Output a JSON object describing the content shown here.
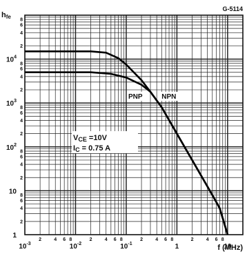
{
  "figure_code": "G-5114",
  "chart_data": {
    "type": "line",
    "title": "",
    "ylabel_main": "h",
    "ylabel_sub": "fe",
    "xlabel": "f (MHz)",
    "xscale": "log",
    "yscale": "log",
    "xlim": [
      0.001,
      20
    ],
    "ylim": [
      1,
      100000
    ],
    "grid": true,
    "x_ticks": [
      {
        "value": 0.001,
        "base": "10",
        "exp": "-3"
      },
      {
        "value": 0.01,
        "base": "10",
        "exp": "-2"
      },
      {
        "value": 0.1,
        "base": "10",
        "exp": "-1"
      },
      {
        "value": 1,
        "label": "1"
      },
      {
        "value": 10,
        "label": "10"
      }
    ],
    "x_minor_labels": [
      {
        "value": 0.002,
        "label": "2"
      },
      {
        "value": 0.004,
        "label": "4"
      },
      {
        "value": 0.006,
        "label": "6"
      },
      {
        "value": 0.008,
        "label": "8"
      },
      {
        "value": 0.02,
        "label": "2"
      },
      {
        "value": 0.04,
        "label": "4"
      },
      {
        "value": 0.06,
        "label": "6"
      },
      {
        "value": 0.08,
        "label": "8"
      },
      {
        "value": 0.2,
        "label": "2"
      },
      {
        "value": 0.4,
        "label": "4"
      },
      {
        "value": 0.6,
        "label": "6"
      },
      {
        "value": 0.8,
        "label": "8"
      },
      {
        "value": 2,
        "label": "2"
      },
      {
        "value": 4,
        "label": "4"
      },
      {
        "value": 6,
        "label": "6"
      },
      {
        "value": 8,
        "label": "8"
      }
    ],
    "y_ticks": [
      {
        "value": 10000,
        "base": "10",
        "exp": "4"
      },
      {
        "value": 1000,
        "base": "10",
        "exp": "3"
      },
      {
        "value": 100,
        "base": "10",
        "exp": "2"
      },
      {
        "value": 10,
        "label": "10"
      },
      {
        "value": 1,
        "label": "1"
      }
    ],
    "y_minor_labels": [
      {
        "value": 80000,
        "label": "8"
      },
      {
        "value": 60000,
        "label": "6"
      },
      {
        "value": 40000,
        "label": "4"
      },
      {
        "value": 20000,
        "label": "2"
      },
      {
        "value": 8000,
        "label": "8"
      },
      {
        "value": 6000,
        "label": "6"
      },
      {
        "value": 4000,
        "label": "4"
      },
      {
        "value": 2000,
        "label": "2"
      },
      {
        "value": 800,
        "label": "8"
      },
      {
        "value": 600,
        "label": "6"
      },
      {
        "value": 400,
        "label": "4"
      },
      {
        "value": 200,
        "label": "2"
      },
      {
        "value": 80,
        "label": "8"
      },
      {
        "value": 60,
        "label": "6"
      },
      {
        "value": 40,
        "label": "4"
      },
      {
        "value": 20,
        "label": "2"
      },
      {
        "value": 8,
        "label": "8"
      },
      {
        "value": 6,
        "label": "6"
      },
      {
        "value": 4,
        "label": "4"
      },
      {
        "value": 2,
        "label": "2"
      }
    ],
    "series": [
      {
        "name": "PNP",
        "points": [
          [
            0.001,
            5000
          ],
          [
            0.02,
            5000
          ],
          [
            0.05,
            4600
          ],
          [
            0.1,
            3800
          ],
          [
            0.2,
            2600
          ],
          [
            0.3,
            1800
          ],
          [
            0.5,
            800
          ],
          [
            1,
            200
          ],
          [
            2,
            50
          ],
          [
            5,
            8
          ],
          [
            7,
            4
          ],
          [
            10,
            1
          ]
        ]
      },
      {
        "name": "NPN",
        "points": [
          [
            0.001,
            15000
          ],
          [
            0.02,
            15000
          ],
          [
            0.04,
            14000
          ],
          [
            0.07,
            10500
          ],
          [
            0.1,
            7500
          ],
          [
            0.2,
            3300
          ],
          [
            0.3,
            1800
          ],
          [
            0.5,
            800
          ],
          [
            1,
            200
          ],
          [
            2,
            50
          ],
          [
            5,
            8
          ],
          [
            7,
            4
          ],
          [
            10,
            1
          ]
        ]
      }
    ],
    "series_labels": [
      {
        "text": "PNP",
        "x": 0.11,
        "y": 1250
      },
      {
        "text": "NPN",
        "x": 0.5,
        "y": 1250
      }
    ],
    "conditions": {
      "line1_main": "V",
      "line1_sub": "CE",
      "line1_value": " =10V",
      "line2_main": "I",
      "line2_sub": "C",
      "line2_value": " = 0.75 A"
    }
  }
}
